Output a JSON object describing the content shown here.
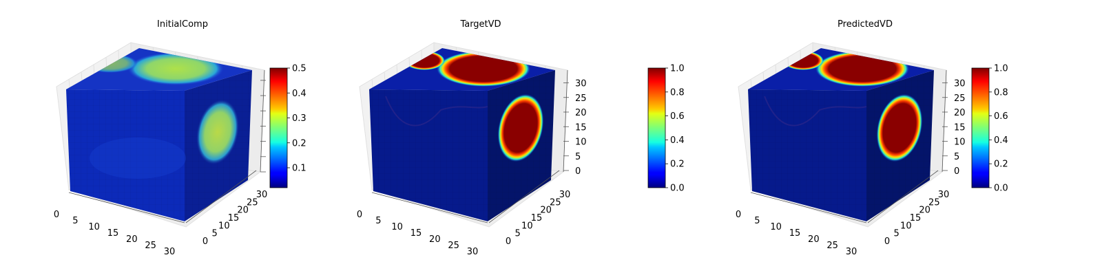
{
  "chart_data": [
    {
      "type": "voxel-3d",
      "title": "InitialComp",
      "x_ticks": [
        "0",
        "5",
        "10",
        "15",
        "20",
        "25",
        "30"
      ],
      "y_ticks": [
        "0",
        "5",
        "10",
        "15",
        "20",
        "25",
        "30"
      ],
      "z_ticks": [],
      "xlim": [
        0,
        32
      ],
      "ylim": [
        0,
        32
      ],
      "zlim": [
        0,
        32
      ],
      "colorbar": {
        "cmap": "jet",
        "range": [
          0.02,
          0.5
        ],
        "ticks": [
          "0.1",
          "0.2",
          "0.3",
          "0.4",
          "0.5"
        ]
      },
      "field": {
        "background": 0.05,
        "top_blob_peak": 0.28,
        "side_blob_peak": 0.33
      }
    },
    {
      "type": "voxel-3d",
      "title": "TargetVD",
      "x_ticks": [
        "0",
        "5",
        "10",
        "15",
        "20",
        "25",
        "30"
      ],
      "y_ticks": [
        "0",
        "5",
        "10",
        "15",
        "20",
        "25",
        "30"
      ],
      "z_ticks": [
        "0",
        "5",
        "10",
        "15",
        "20",
        "25",
        "30"
      ],
      "xlim": [
        0,
        32
      ],
      "ylim": [
        0,
        32
      ],
      "zlim": [
        0,
        32
      ],
      "colorbar": {
        "cmap": "jet",
        "range": [
          0.0,
          1.0
        ],
        "ticks": [
          "0.0",
          "0.2",
          "0.4",
          "0.6",
          "0.8",
          "1.0"
        ]
      },
      "field": {
        "background": 0.0,
        "top_blob_peak": 1.0,
        "side_blob_peak": 1.0
      }
    },
    {
      "type": "voxel-3d",
      "title": "PredictedVD",
      "x_ticks": [
        "0",
        "5",
        "10",
        "15",
        "20",
        "25",
        "30"
      ],
      "y_ticks": [
        "0",
        "5",
        "10",
        "15",
        "20",
        "25",
        "30"
      ],
      "z_ticks": [
        "0",
        "5",
        "10",
        "15",
        "20",
        "25",
        "30"
      ],
      "xlim": [
        0,
        32
      ],
      "ylim": [
        0,
        32
      ],
      "zlim": [
        0,
        32
      ],
      "colorbar": {
        "cmap": "jet",
        "range": [
          0.0,
          1.0
        ],
        "ticks": [
          "0.0",
          "0.2",
          "0.4",
          "0.6",
          "0.8",
          "1.0"
        ]
      },
      "field": {
        "background": 0.0,
        "top_blob_peak": 1.0,
        "side_blob_peak": 1.0
      }
    }
  ]
}
